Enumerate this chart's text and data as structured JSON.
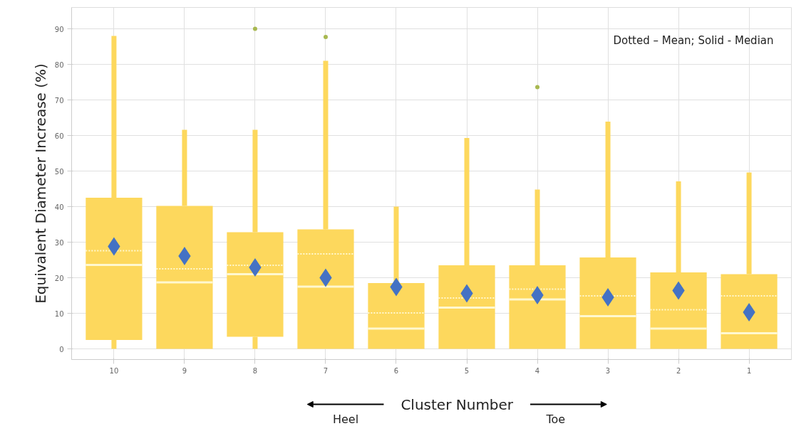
{
  "chart_data": {
    "type": "box",
    "ylabel": "Equivalent Diameter Increase (%)",
    "xlabel": "Cluster Number",
    "categories": [
      "10",
      "9",
      "8",
      "7",
      "6",
      "5",
      "4",
      "3",
      "2",
      "1"
    ],
    "ylim": [
      -3,
      96
    ],
    "yticks": [
      0,
      10,
      20,
      30,
      40,
      50,
      60,
      70,
      80,
      90
    ],
    "grid": true,
    "annotations": [
      "Dotted – Mean; Solid - Median",
      "Heel",
      "Toe"
    ],
    "series": [
      {
        "color": "#fdd85d",
        "boxes": [
          {
            "low": 0,
            "q1": 2.5,
            "median": 23.6,
            "q3": 42.5,
            "high": 88,
            "mean": 27.6
          },
          {
            "low": 0,
            "q1": 0,
            "median": 18.7,
            "q3": 40.2,
            "high": 61.6,
            "mean": 22.5
          },
          {
            "low": 0,
            "q1": 3.4,
            "median": 21,
            "q3": 32.8,
            "high": 61.6,
            "mean": 23.5,
            "outliers": [
              90
            ]
          },
          {
            "low": 0,
            "q1": 0,
            "median": 17.5,
            "q3": 33.6,
            "high": 81,
            "mean": 26.7,
            "outliers": [
              87.7
            ]
          },
          {
            "low": 0,
            "q1": 0,
            "median": 5.7,
            "q3": 18.5,
            "high": 40,
            "mean": 10.1
          },
          {
            "low": 0,
            "q1": 0,
            "median": 11.6,
            "q3": 23.5,
            "high": 59.3,
            "mean": 14.3
          },
          {
            "low": 0,
            "q1": 0,
            "median": 13.9,
            "q3": 23.5,
            "high": 44.8,
            "mean": 16.8,
            "outliers": [
              73.6
            ]
          },
          {
            "low": 0,
            "q1": 0,
            "median": 9.2,
            "q3": 25.7,
            "high": 63.9,
            "mean": 14.9
          },
          {
            "low": 0,
            "q1": 0,
            "median": 5.7,
            "q3": 21.5,
            "high": 47.1,
            "mean": 11
          },
          {
            "low": 0,
            "q1": 0,
            "median": 4.4,
            "q3": 21,
            "high": 49.6,
            "mean": 14.9
          }
        ]
      },
      {
        "type": "scatter",
        "marker": "diamond",
        "color": "#4472c4",
        "x": [
          "10",
          "9",
          "8",
          "7",
          "6",
          "5",
          "4",
          "3",
          "2",
          "1"
        ],
        "values": [
          28.8,
          26.1,
          22.9,
          20,
          17.4,
          15.6,
          15.1,
          14.5,
          16.4,
          10.3
        ]
      }
    ]
  }
}
